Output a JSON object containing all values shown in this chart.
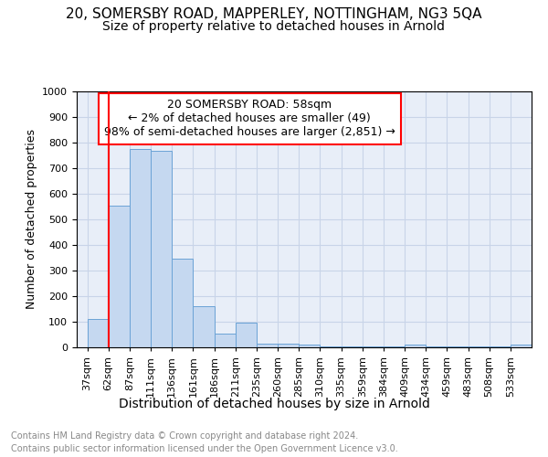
{
  "title1": "20, SOMERSBY ROAD, MAPPERLEY, NOTTINGHAM, NG3 5QA",
  "title2": "Size of property relative to detached houses in Arnold",
  "xlabel": "Distribution of detached houses by size in Arnold",
  "ylabel": "Number of detached properties",
  "bins": [
    "37sqm",
    "62sqm",
    "87sqm",
    "111sqm",
    "136sqm",
    "161sqm",
    "186sqm",
    "211sqm",
    "235sqm",
    "260sqm",
    "285sqm",
    "310sqm",
    "335sqm",
    "359sqm",
    "384sqm",
    "409sqm",
    "434sqm",
    "459sqm",
    "483sqm",
    "508sqm",
    "533sqm"
  ],
  "values": [
    110,
    555,
    775,
    768,
    345,
    160,
    55,
    98,
    15,
    13,
    10,
    4,
    3,
    3,
    3,
    10,
    2,
    2,
    2,
    2,
    10
  ],
  "bar_color": "#c5d8f0",
  "bar_edge_color": "#6ba3d6",
  "red_line_x": 1,
  "annotation_title": "20 SOMERSBY ROAD: 58sqm",
  "annotation_line1": "← 2% of detached houses are smaller (49)",
  "annotation_line2": "98% of semi-detached houses are larger (2,851) →",
  "ylim": [
    0,
    1000
  ],
  "yticks": [
    0,
    100,
    200,
    300,
    400,
    500,
    600,
    700,
    800,
    900,
    1000
  ],
  "grid_color": "#c8d4e8",
  "footer1": "Contains HM Land Registry data © Crown copyright and database right 2024.",
  "footer2": "Contains public sector information licensed under the Open Government Licence v3.0.",
  "bg_color": "#e8eef8",
  "title1_fontsize": 11,
  "title2_fontsize": 10,
  "xlabel_fontsize": 10,
  "ylabel_fontsize": 9,
  "annotation_fontsize": 9,
  "tick_fontsize": 8,
  "footer_fontsize": 7
}
